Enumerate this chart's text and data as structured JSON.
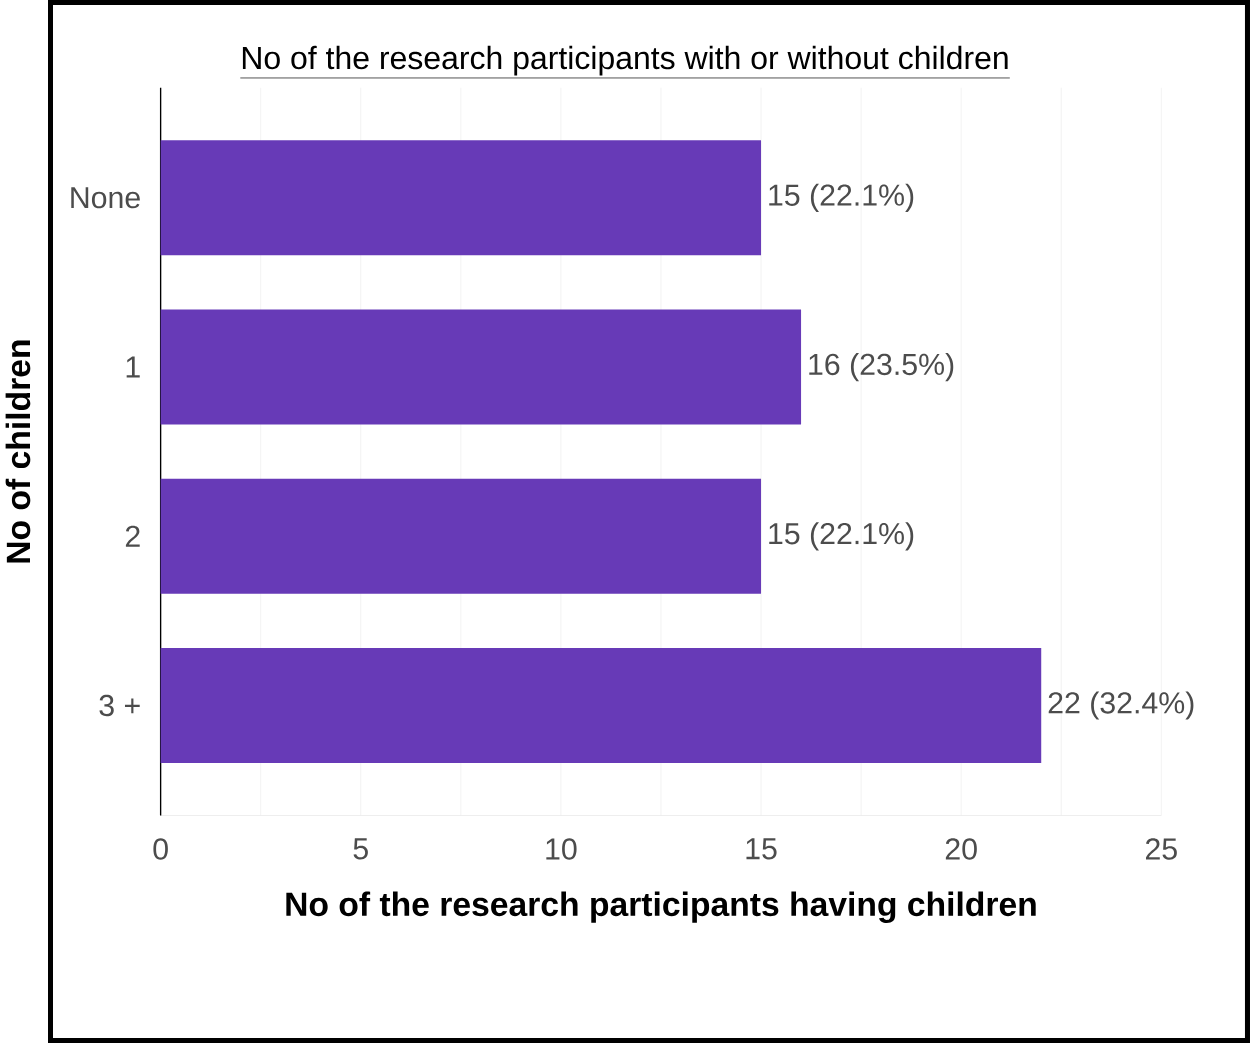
{
  "chart_data": {
    "type": "bar",
    "orientation": "horizontal",
    "title": "No of the research participants with or without children",
    "xlabel": "No of the research participants having children",
    "ylabel": "No of children",
    "categories": [
      "None",
      "1",
      "2",
      "3 +"
    ],
    "values": [
      15,
      16,
      15,
      22
    ],
    "value_labels": [
      "15 (22.1%)",
      "16 (23.5%)",
      "15 (22.1%)",
      "22 (32.4%)"
    ],
    "color": "#673ab7",
    "xlim": [
      0,
      25
    ],
    "xticks": [
      0,
      5,
      10,
      15,
      20,
      25
    ],
    "grid": "x"
  }
}
